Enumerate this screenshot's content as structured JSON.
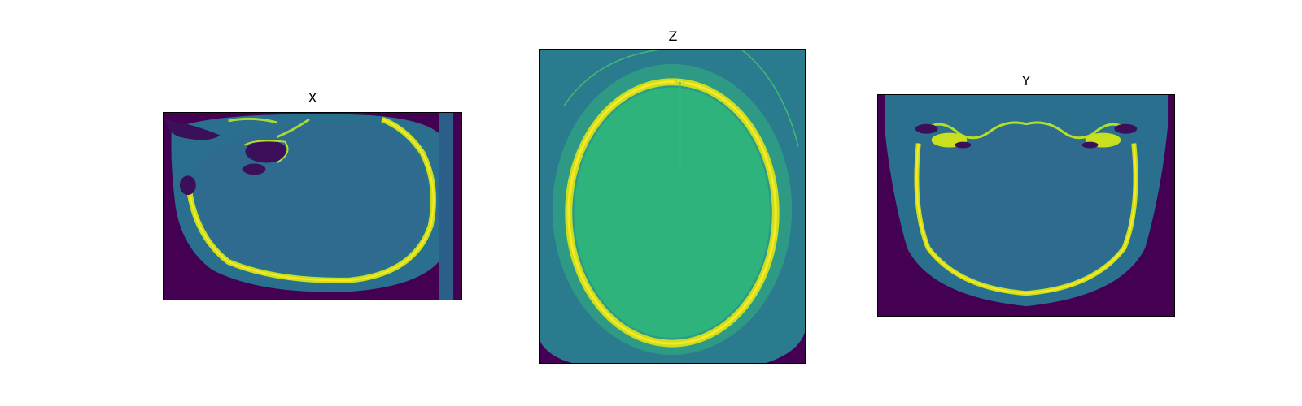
{
  "figure": {
    "panels": [
      {
        "id": "sagittal",
        "title": "X"
      },
      {
        "id": "axial",
        "title": "Z"
      },
      {
        "id": "coronal",
        "title": "Y"
      }
    ]
  },
  "colors": {
    "background": "#440154",
    "soft_tissue": "#2a6f8e",
    "brain": "#2f6b8e",
    "brain_axial": "#2eb37c",
    "tissue_axial": "#2b8a8c",
    "bone": "#c8e020",
    "bone_bright": "#fde725",
    "air": "#3b0f5a"
  }
}
